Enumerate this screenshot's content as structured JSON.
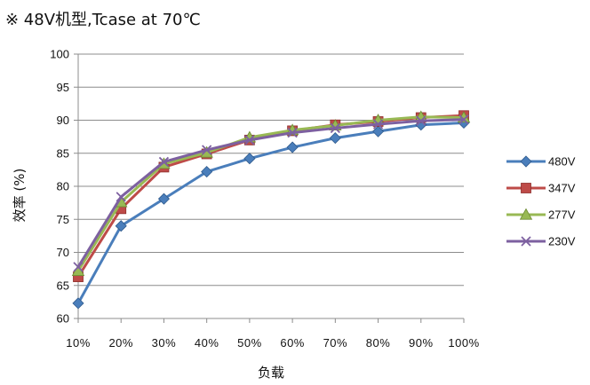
{
  "chart_data": {
    "type": "line",
    "title": "※ 48V机型,Tcase at 70℃",
    "xlabel": "负载",
    "ylabel": "效率 (%)",
    "categories": [
      "10%",
      "20%",
      "30%",
      "40%",
      "50%",
      "60%",
      "70%",
      "80%",
      "90%",
      "100%"
    ],
    "ylim": [
      60,
      100
    ],
    "yticks": [
      60,
      65,
      70,
      75,
      80,
      85,
      90,
      95,
      100
    ],
    "grid": "horizontal",
    "legend_position": "right",
    "series": [
      {
        "name": "480V",
        "color": "#4A7EBB",
        "marker": "diamond",
        "values": [
          62.3,
          74.0,
          78.1,
          82.2,
          84.2,
          85.9,
          87.3,
          88.3,
          89.3,
          89.6
        ]
      },
      {
        "name": "347V",
        "color": "#BE4B48",
        "marker": "square",
        "values": [
          66.3,
          76.6,
          82.9,
          84.9,
          87.0,
          88.4,
          89.3,
          89.8,
          90.4,
          90.7
        ]
      },
      {
        "name": "277V",
        "color": "#98B954",
        "marker": "triangle",
        "values": [
          67.2,
          77.6,
          83.4,
          85.1,
          87.4,
          88.5,
          89.2,
          90.0,
          90.5,
          90.4
        ]
      },
      {
        "name": "230V",
        "color": "#7D60A0",
        "marker": "x",
        "values": [
          67.8,
          78.4,
          83.7,
          85.5,
          87.0,
          88.1,
          88.8,
          89.4,
          89.9,
          90.1
        ]
      }
    ]
  }
}
